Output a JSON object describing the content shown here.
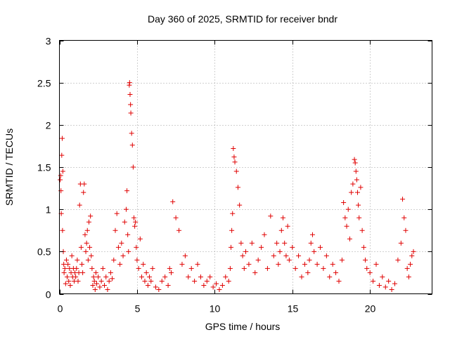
{
  "chart_data": {
    "type": "scatter",
    "title": "Day 360 of 2025, SRMTID for receiver bndr",
    "xlabel": "GPS time / hours",
    "ylabel": "SRMTID / TECUs",
    "xlim": [
      0,
      24
    ],
    "ylim": [
      0,
      3
    ],
    "xticks": [
      0,
      5,
      10,
      15,
      20
    ],
    "xtick_labels": [
      "0",
      "5",
      "10",
      "15",
      "20"
    ],
    "yticks": [
      0,
      0.5,
      1,
      1.5,
      2,
      2.5,
      3
    ],
    "ytick_labels": [
      "0",
      "0.5",
      "1",
      "1.5",
      "2",
      "2.5",
      "3"
    ],
    "grid": true,
    "marker": "+",
    "color": "#e00000",
    "series": [
      {
        "name": "SRMTID",
        "x": [
          0.05,
          0.08,
          0.1,
          0.12,
          0.15,
          0.18,
          0.2,
          0.22,
          0.25,
          0.28,
          0.3,
          0.35,
          0.4,
          0.45,
          0.5,
          0.55,
          0.6,
          0.65,
          0.7,
          0.75,
          0.8,
          0.85,
          0.9,
          0.95,
          1.0,
          1.05,
          1.1,
          1.15,
          1.2,
          1.25,
          1.3,
          1.35,
          1.4,
          1.45,
          1.5,
          1.55,
          1.6,
          1.65,
          1.7,
          1.75,
          1.8,
          1.85,
          1.9,
          1.95,
          2.0,
          2.05,
          2.1,
          2.15,
          2.2,
          2.25,
          2.3,
          2.35,
          2.4,
          2.5,
          2.6,
          2.7,
          2.8,
          2.9,
          3.0,
          3.1,
          3.2,
          3.3,
          3.4,
          3.5,
          3.6,
          3.7,
          3.8,
          3.9,
          4.0,
          4.1,
          4.2,
          4.3,
          4.35,
          4.4,
          4.45,
          4.5,
          4.52,
          4.55,
          4.58,
          4.6,
          4.65,
          4.7,
          4.75,
          4.8,
          4.85,
          4.9,
          4.95,
          5.0,
          5.1,
          5.2,
          5.3,
          5.4,
          5.5,
          5.6,
          5.7,
          5.8,
          5.9,
          6.0,
          6.2,
          6.4,
          6.6,
          6.8,
          7.0,
          7.1,
          7.2,
          7.3,
          7.5,
          7.7,
          7.9,
          8.1,
          8.3,
          8.5,
          8.7,
          8.9,
          9.1,
          9.3,
          9.5,
          9.7,
          9.9,
          10.1,
          10.3,
          10.5,
          10.7,
          10.9,
          11.0,
          11.05,
          11.1,
          11.15,
          11.2,
          11.25,
          11.3,
          11.4,
          11.5,
          11.6,
          11.7,
          11.8,
          11.9,
          12.0,
          12.2,
          12.4,
          12.6,
          12.8,
          13.0,
          13.2,
          13.4,
          13.6,
          13.8,
          14.0,
          14.1,
          14.2,
          14.3,
          14.4,
          14.5,
          14.6,
          14.7,
          14.8,
          15.0,
          15.2,
          15.4,
          15.6,
          15.8,
          16.0,
          16.1,
          16.2,
          16.3,
          16.4,
          16.6,
          16.8,
          17.0,
          17.2,
          17.4,
          17.6,
          17.8,
          18.0,
          18.2,
          18.3,
          18.4,
          18.5,
          18.6,
          18.7,
          18.8,
          18.9,
          19.0,
          19.05,
          19.1,
          19.15,
          19.2,
          19.25,
          19.3,
          19.4,
          19.5,
          19.6,
          19.7,
          19.8,
          20.0,
          20.2,
          20.4,
          20.6,
          20.8,
          21.0,
          21.2,
          21.4,
          21.6,
          21.8,
          22.0,
          22.1,
          22.2,
          22.3,
          22.4,
          22.5,
          22.6,
          22.7,
          22.8
        ],
        "y": [
          1.35,
          1.4,
          1.22,
          0.95,
          1.64,
          1.84,
          0.75,
          1.45,
          0.5,
          0.35,
          0.25,
          0.3,
          0.12,
          0.4,
          0.2,
          0.35,
          0.15,
          0.3,
          0.1,
          0.25,
          0.45,
          0.2,
          0.3,
          0.15,
          0.25,
          0.2,
          0.3,
          0.4,
          0.15,
          0.25,
          1.05,
          1.3,
          0.55,
          0.35,
          0.25,
          1.2,
          1.3,
          0.7,
          0.5,
          0.6,
          0.75,
          0.4,
          0.85,
          0.55,
          0.92,
          0.45,
          0.3,
          0.1,
          0.2,
          0.15,
          0.05,
          0.25,
          0.12,
          0.2,
          0.08,
          0.15,
          0.3,
          0.1,
          0.2,
          0.05,
          0.15,
          0.25,
          0.18,
          0.4,
          0.75,
          0.95,
          0.55,
          0.35,
          0.6,
          0.45,
          0.85,
          1.0,
          1.22,
          0.7,
          0.5,
          2.47,
          2.5,
          2.36,
          2.24,
          2.14,
          1.9,
          1.76,
          1.5,
          0.9,
          0.8,
          0.85,
          0.55,
          0.4,
          0.3,
          0.65,
          0.2,
          0.35,
          0.15,
          0.25,
          0.1,
          0.2,
          0.15,
          0.3,
          0.08,
          0.05,
          0.15,
          0.2,
          0.1,
          0.3,
          0.25,
          1.09,
          0.9,
          0.75,
          0.35,
          0.45,
          0.2,
          0.3,
          0.15,
          0.35,
          0.2,
          0.1,
          0.15,
          0.2,
          0.08,
          0.12,
          0.05,
          0.1,
          0.2,
          0.15,
          0.3,
          0.55,
          0.75,
          0.95,
          1.72,
          1.62,
          1.56,
          1.45,
          1.26,
          1.05,
          0.6,
          0.45,
          0.3,
          0.5,
          0.35,
          0.6,
          0.25,
          0.4,
          0.55,
          0.7,
          0.3,
          0.92,
          0.45,
          0.6,
          0.35,
          0.5,
          0.75,
          0.9,
          0.6,
          0.45,
          0.8,
          0.4,
          0.55,
          0.3,
          0.45,
          0.2,
          0.35,
          0.25,
          0.4,
          0.6,
          0.7,
          0.5,
          0.35,
          0.55,
          0.3,
          0.45,
          0.2,
          0.35,
          0.25,
          0.15,
          0.4,
          1.08,
          0.9,
          0.8,
          1.0,
          0.65,
          1.2,
          1.3,
          1.59,
          1.55,
          1.45,
          1.35,
          1.2,
          1.05,
          0.9,
          1.26,
          0.75,
          0.55,
          0.4,
          0.3,
          0.25,
          0.15,
          0.35,
          0.1,
          0.2,
          0.08,
          0.15,
          0.05,
          0.12,
          0.4,
          0.6,
          1.12,
          0.9,
          0.75,
          0.3,
          0.2,
          0.35,
          0.45,
          0.5
        ]
      }
    ]
  }
}
